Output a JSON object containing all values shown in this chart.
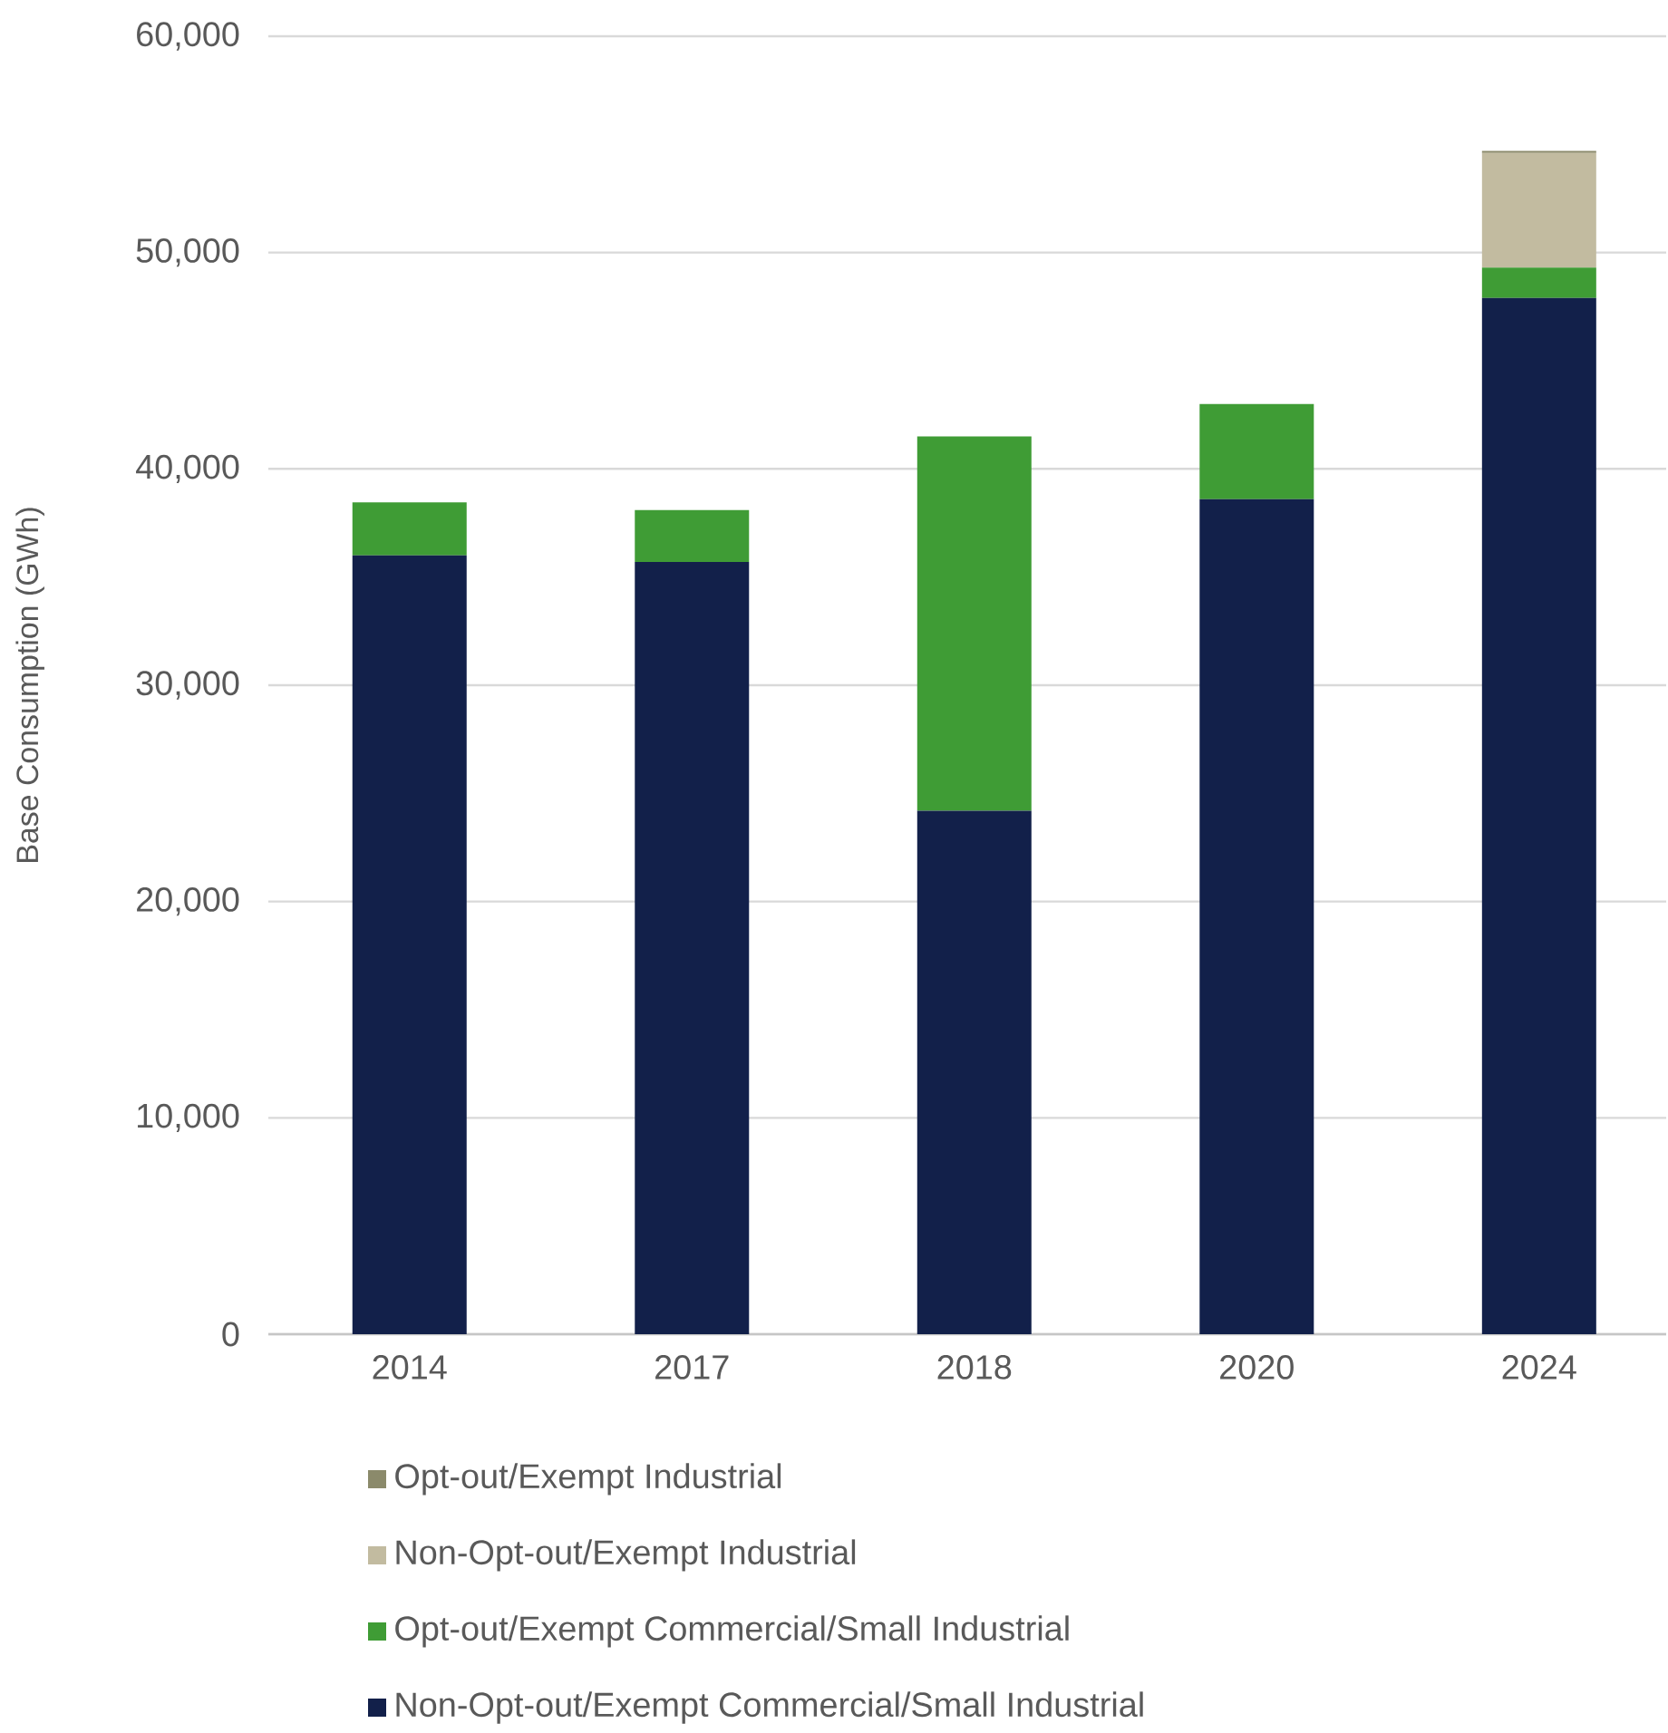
{
  "chart_data": {
    "type": "bar",
    "stacked": true,
    "ylabel": "Base Consumption (GWh)",
    "categories": [
      "2014",
      "2017",
      "2018",
      "2020",
      "2024"
    ],
    "series": [
      {
        "name": "Non-Opt-out/Exempt Commercial/Small Industrial",
        "color": "#12204a",
        "values": [
          36000,
          35700,
          24200,
          38600,
          47900
        ]
      },
      {
        "name": "Opt-out/Exempt Commercial/Small Industrial",
        "color": "#3f9c35",
        "values": [
          2450,
          2400,
          17300,
          4400,
          1400
        ]
      },
      {
        "name": "Non-Opt-out/Exempt Industrial",
        "color": "#c2bba0",
        "values": [
          0,
          0,
          0,
          0,
          5300
        ]
      },
      {
        "name": "Opt-out/Exempt Industrial",
        "color": "#8b8a6b",
        "values": [
          0,
          0,
          0,
          0,
          100
        ]
      }
    ],
    "ylim": [
      0,
      60000
    ],
    "yticks": [
      {
        "value": 0,
        "label": "0"
      },
      {
        "value": 10000,
        "label": "10,000"
      },
      {
        "value": 20000,
        "label": "20,000"
      },
      {
        "value": 30000,
        "label": "30,000"
      },
      {
        "value": 40000,
        "label": "40,000"
      },
      {
        "value": 50000,
        "label": "50,000"
      },
      {
        "value": 60000,
        "label": "60,000"
      }
    ],
    "grid": "y",
    "legend": "bottom"
  }
}
